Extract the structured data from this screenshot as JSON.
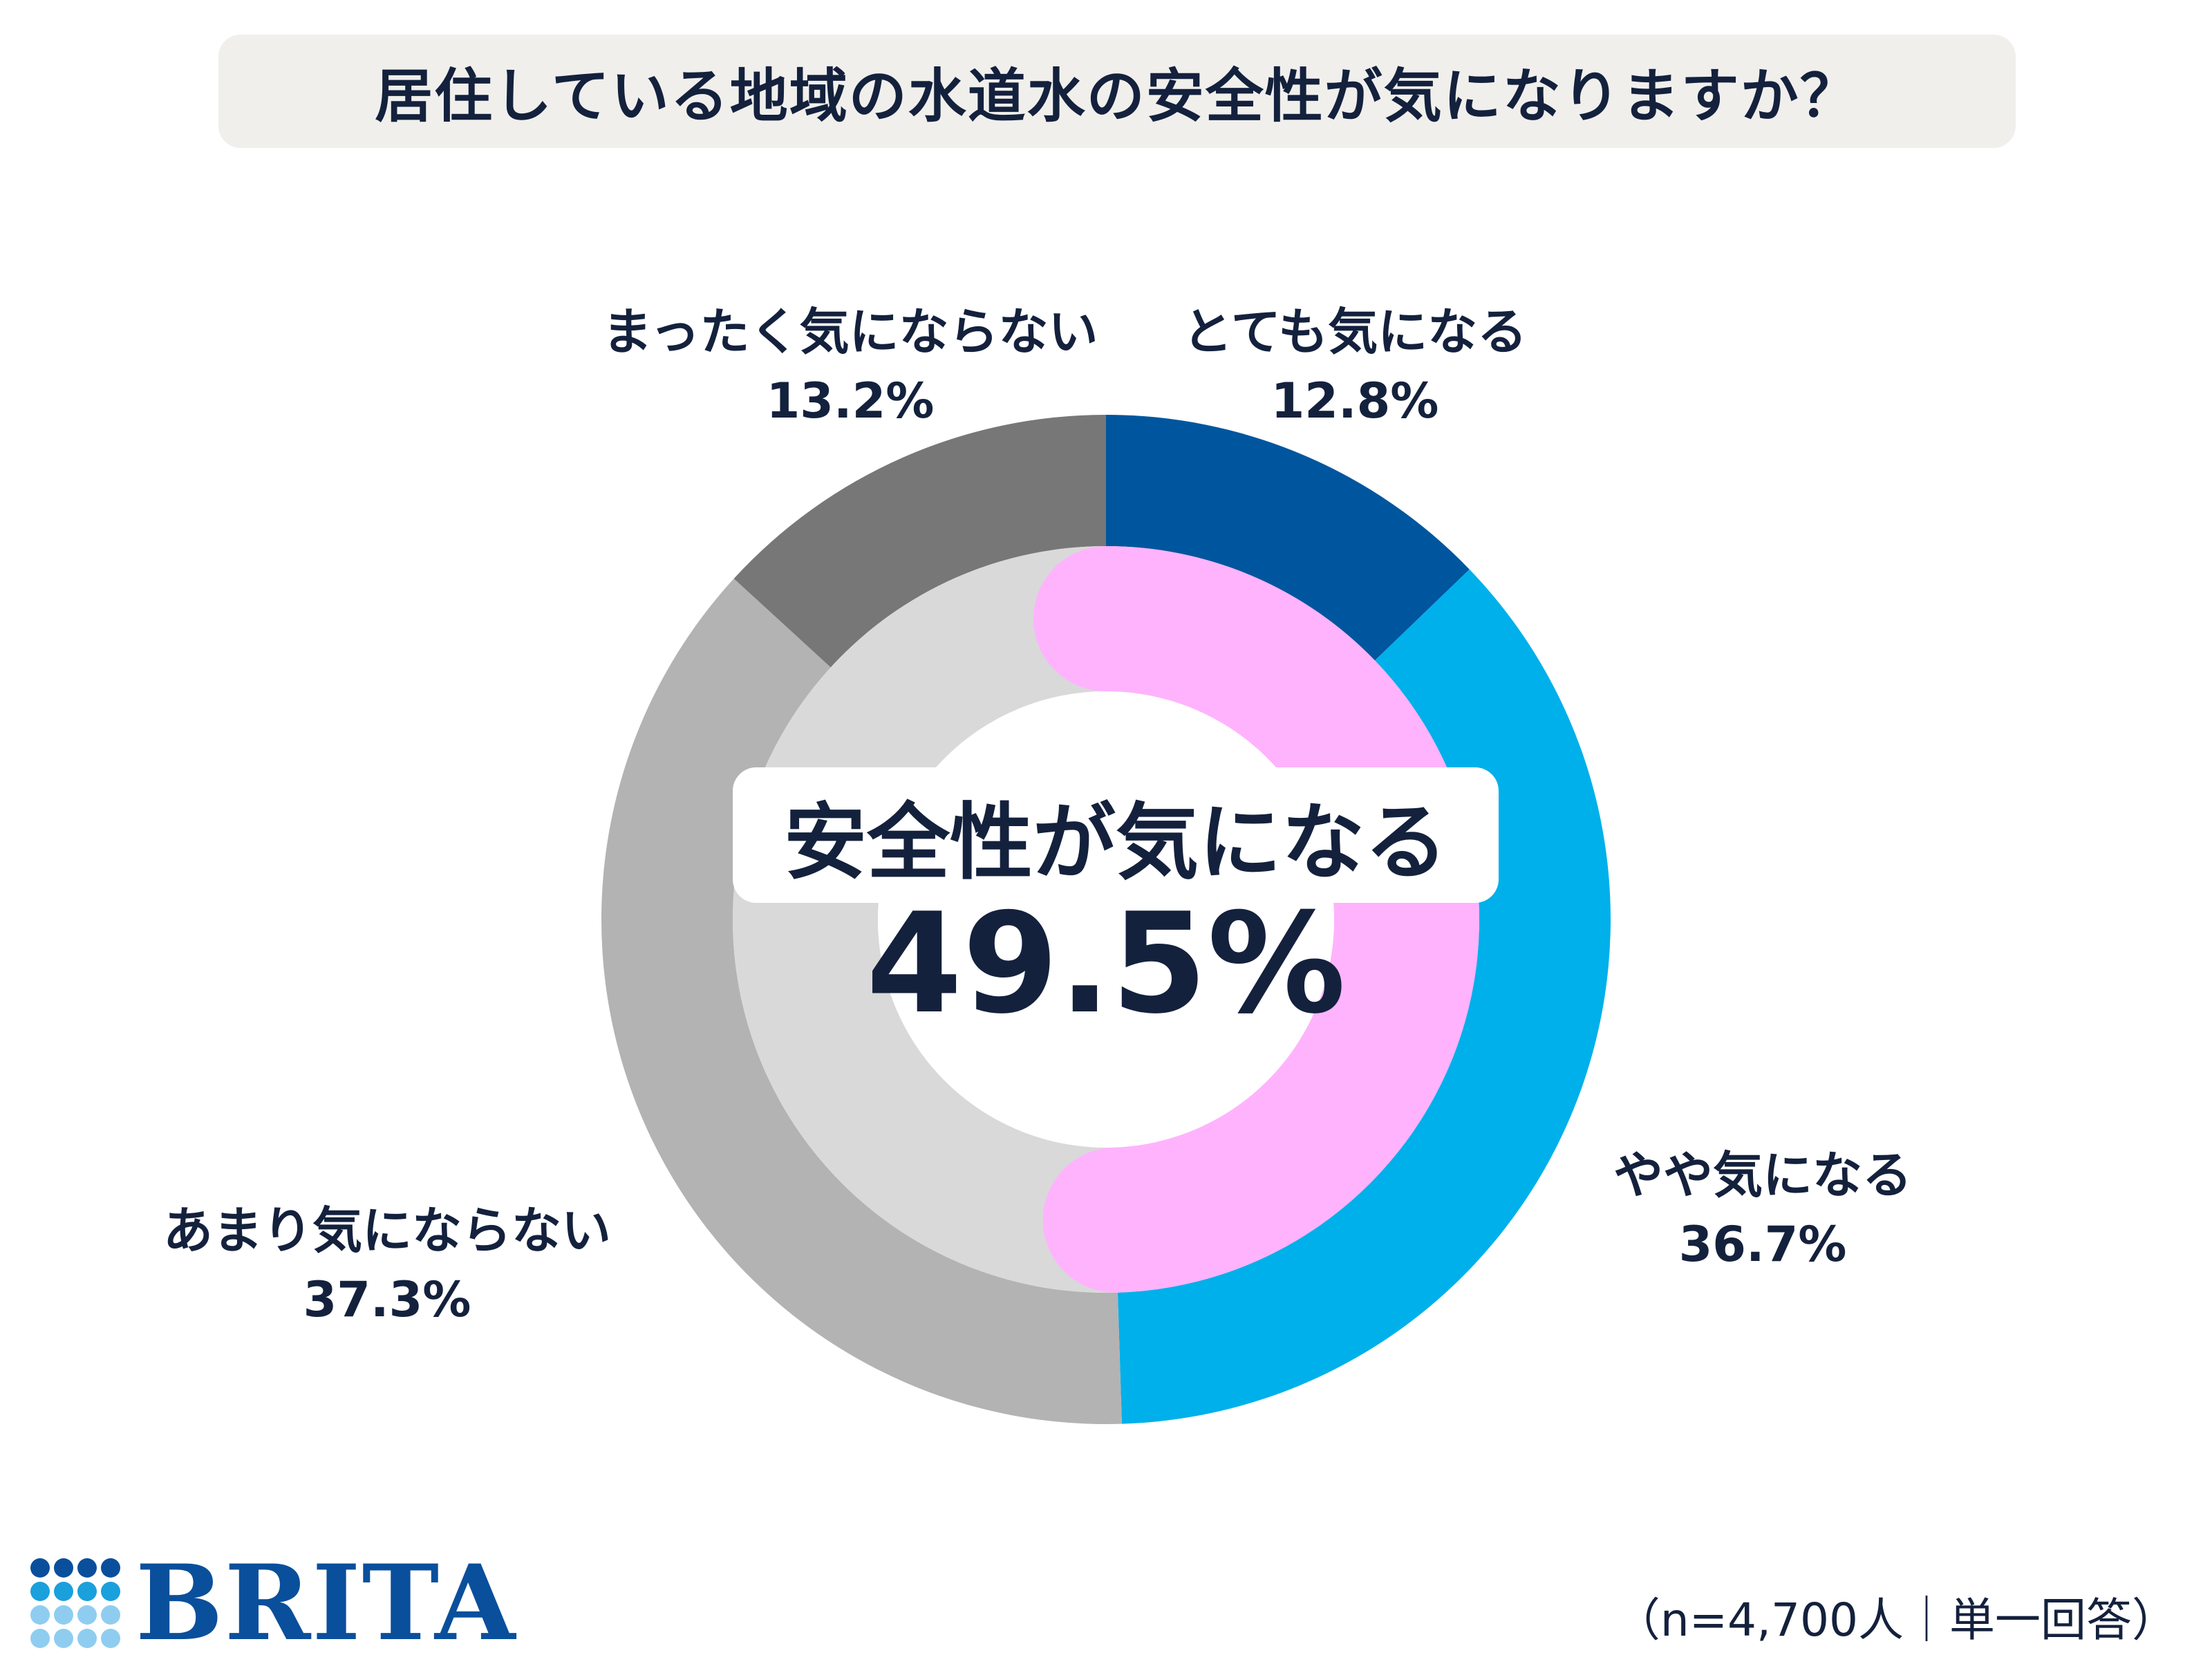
{
  "title": "居住している地域の水道水の安全性が気になりますか？",
  "center": {
    "label": "安全性が気になる",
    "value": "49.5%"
  },
  "labels": [
    {
      "name": "まったく気にならない",
      "pct": "13.2%"
    },
    {
      "name": "とても気になる",
      "pct": "12.8%"
    },
    {
      "name": "やや気になる",
      "pct": "36.7%"
    },
    {
      "name": "あまり気にならない",
      "pct": "37.3%"
    }
  ],
  "chart_data": {
    "type": "pie",
    "title": "居住している地域の水道水の安全性が気になりますか？",
    "series": [
      {
        "name": "outer",
        "categories": [
          "とても気になる",
          "やや気になる",
          "あまり気にならない",
          "まったく気にならない"
        ],
        "values": [
          12.8,
          36.7,
          37.3,
          13.2
        ],
        "colors": [
          "#00569e",
          "#00b0ea",
          "#b3b3b3",
          "#777777"
        ]
      },
      {
        "name": "inner",
        "categories": [
          "安全性が気になる",
          ""
        ],
        "values": [
          49.5,
          50.5
        ],
        "colors": [
          "#ffb3fd",
          "#d9d9d9"
        ]
      }
    ]
  },
  "footnote": "（n=4,700人｜単一回答）",
  "logo": {
    "text": "BRITA",
    "colors": [
      "#0a4f9c",
      "#1aa0dc",
      "#8fcdf0"
    ]
  }
}
